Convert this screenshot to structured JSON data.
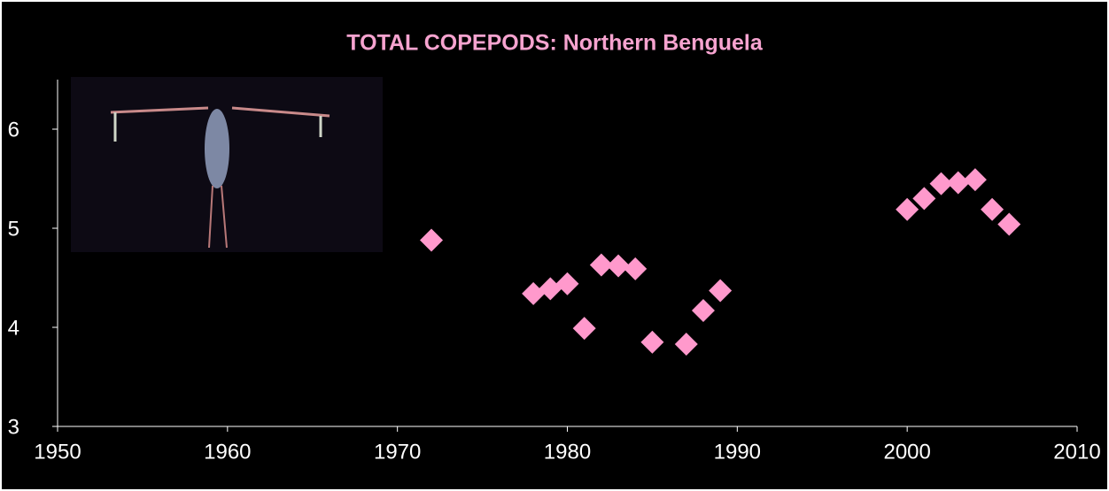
{
  "chart_data": {
    "type": "scatter",
    "title": "TOTAL COPEPODS: Northern Benguela",
    "x": [
      1972,
      1978,
      1979,
      1980,
      1981,
      1982,
      1983,
      1984,
      1985,
      1987,
      1988,
      1989,
      2000,
      2001,
      2002,
      2003,
      2004,
      2005,
      2006
    ],
    "values": [
      4.88,
      4.34,
      4.39,
      4.44,
      3.99,
      4.63,
      4.62,
      4.59,
      3.85,
      3.83,
      4.17,
      4.37,
      5.19,
      5.3,
      5.45,
      5.46,
      5.49,
      5.19,
      5.04
    ],
    "color": "#ff99cc",
    "xlim": [
      1950,
      2010
    ],
    "xticks": [
      1950,
      1960,
      1970,
      1980,
      1990,
      2000,
      2010
    ],
    "ylim": [
      3,
      6.5
    ],
    "yticks": [
      3,
      4,
      5,
      6
    ],
    "grid": false
  }
}
